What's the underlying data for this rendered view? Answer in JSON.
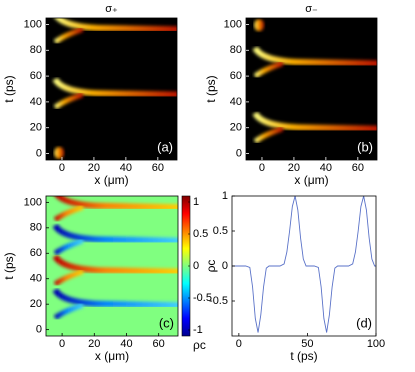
{
  "chart_data": [
    {
      "type": "heatmap",
      "title": "σ₊",
      "xlabel": "x (μm)",
      "ylabel": "t (ps)",
      "panel_label": "(a)",
      "xlim": [
        -10,
        72
      ],
      "ylim": [
        -5,
        105
      ],
      "xticks": [
        0,
        20,
        40,
        60
      ],
      "yticks": [
        0,
        20,
        40,
        60,
        80,
        100
      ]
    },
    {
      "type": "heatmap",
      "title": "σ₋",
      "xlabel": "x (μm)",
      "ylabel": "t (ps)",
      "panel_label": "(b)",
      "xlim": [
        -10,
        72
      ],
      "ylim": [
        -5,
        105
      ],
      "xticks": [
        0,
        20,
        40,
        60
      ],
      "yticks": [
        0,
        20,
        40,
        60,
        80,
        100
      ]
    },
    {
      "type": "heatmap",
      "xlabel": "x (μm)",
      "ylabel": "t (ps)",
      "panel_label": "(c)",
      "xlim": [
        -10,
        72
      ],
      "ylim": [
        -5,
        105
      ],
      "xticks": [
        0,
        20,
        40,
        60
      ],
      "yticks": [
        0,
        20,
        40,
        60,
        80,
        100
      ],
      "colorbar": {
        "label": "ρc",
        "clim": [
          -1,
          1
        ],
        "ticks": [
          1,
          0.5,
          0,
          -0.5,
          -1
        ]
      }
    },
    {
      "type": "line",
      "xlabel": "t (ps)",
      "ylabel": "ρc",
      "panel_label": "(d)",
      "xlim": [
        -5,
        100
      ],
      "ylim": [
        -1,
        1
      ],
      "xticks": [
        0,
        50,
        100
      ],
      "yticks": [
        1,
        0.5,
        0,
        -0.5
      ],
      "color": "#5a72c8",
      "x": [
        -5,
        0,
        5,
        8,
        10,
        12,
        14,
        16,
        18,
        20,
        22,
        25,
        30,
        33,
        35,
        37,
        39,
        41,
        43,
        45,
        47,
        49,
        52,
        55,
        58,
        60,
        62,
        64,
        66,
        68,
        70,
        72,
        75,
        80,
        83,
        85,
        87,
        89,
        91,
        93,
        95,
        97,
        99,
        100
      ],
      "values": [
        0,
        0,
        0,
        -0.02,
        -0.3,
        -0.75,
        -0.95,
        -0.7,
        -0.3,
        -0.03,
        0,
        0,
        0,
        0.03,
        0.2,
        0.5,
        0.85,
        1,
        0.8,
        0.4,
        0.1,
        0,
        0,
        0,
        -0.02,
        -0.3,
        -0.75,
        -0.95,
        -0.7,
        -0.3,
        -0.03,
        0,
        0,
        0,
        0.03,
        0.2,
        0.5,
        0.85,
        1,
        0.8,
        0.4,
        0.1,
        0,
        0
      ]
    }
  ]
}
